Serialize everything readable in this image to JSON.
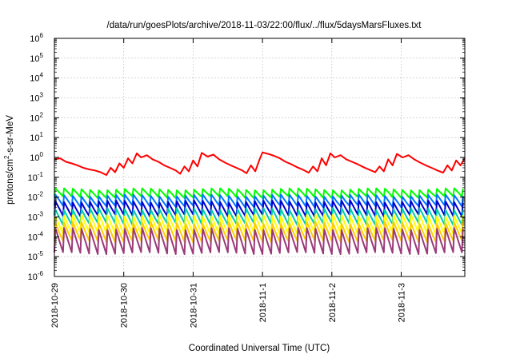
{
  "chart_data": {
    "type": "line",
    "title": "/data/run/goesPlots/archive/2018-11-03/22:00/flux/../flux/5daysMarsFluxes.txt",
    "xlabel": "Coordinated Universal Time (UTC)",
    "ylabel": "protons/cm²-s-sr-MeV",
    "y_scale": "log",
    "ylim": [
      1e-06,
      1000000.0
    ],
    "y_ticks": [
      {
        "base": "10",
        "exp": "-6",
        "value": 1e-06
      },
      {
        "base": "10",
        "exp": "-5",
        "value": 1e-05
      },
      {
        "base": "10",
        "exp": "-4",
        "value": 0.0001
      },
      {
        "base": "10",
        "exp": "-3",
        "value": 0.001
      },
      {
        "base": "10",
        "exp": "-2",
        "value": 0.01
      },
      {
        "base": "10",
        "exp": "-1",
        "value": 0.1
      },
      {
        "base": "10",
        "exp": "0",
        "value": 1
      },
      {
        "base": "10",
        "exp": "1",
        "value": 10
      },
      {
        "base": "10",
        "exp": "2",
        "value": 100
      },
      {
        "base": "10",
        "exp": "3",
        "value": 1000
      },
      {
        "base": "10",
        "exp": "4",
        "value": 10000
      },
      {
        "base": "10",
        "exp": "5",
        "value": 100000
      },
      {
        "base": "10",
        "exp": "6",
        "value": 1000000
      }
    ],
    "xlim": [
      "2018-10-29T00:00",
      "2018-11-03T22:00"
    ],
    "x_ticks": [
      "2018-10-29",
      "2018-10-30",
      "2018-10-31",
      "2018-11-1",
      "2018-11-2",
      "2018-11-3"
    ],
    "grid": true,
    "series": [
      {
        "color": "#ff0000",
        "values": [
          [
            "2018-10-29T00:00",
            0.8
          ],
          [
            "2018-10-29T02:00",
            0.9
          ],
          [
            "2018-10-29T04:00",
            0.6
          ],
          [
            "2018-10-29T06:00",
            0.5
          ],
          [
            "2018-10-29T08:00",
            0.4
          ],
          [
            "2018-10-29T10:00",
            0.3
          ],
          [
            "2018-10-29T12:00",
            0.25
          ],
          [
            "2018-10-29T14:00",
            0.22
          ],
          [
            "2018-10-29T16:00",
            0.18
          ],
          [
            "2018-10-29T18:00",
            0.13
          ],
          [
            "2018-10-29T19:30",
            0.3
          ],
          [
            "2018-10-29T21:00",
            0.18
          ],
          [
            "2018-10-29T22:30",
            0.5
          ],
          [
            "2018-10-30T00:00",
            0.3
          ],
          [
            "2018-10-30T01:30",
            0.9
          ],
          [
            "2018-10-30T03:00",
            0.5
          ],
          [
            "2018-10-30T04:30",
            1.6
          ],
          [
            "2018-10-30T06:00",
            1.0
          ],
          [
            "2018-10-30T08:00",
            1.3
          ],
          [
            "2018-10-30T10:00",
            0.8
          ],
          [
            "2018-10-30T12:00",
            0.6
          ],
          [
            "2018-10-30T14:00",
            0.4
          ],
          [
            "2018-10-30T16:00",
            0.3
          ],
          [
            "2018-10-30T18:00",
            0.22
          ],
          [
            "2018-10-30T19:30",
            0.15
          ],
          [
            "2018-10-30T21:00",
            0.35
          ],
          [
            "2018-10-30T22:30",
            0.2
          ],
          [
            "2018-10-31T00:00",
            0.7
          ],
          [
            "2018-10-31T01:30",
            0.35
          ],
          [
            "2018-10-31T03:00",
            1.7
          ],
          [
            "2018-10-31T05:00",
            1.1
          ],
          [
            "2018-10-31T07:00",
            1.4
          ],
          [
            "2018-10-31T09:00",
            0.8
          ],
          [
            "2018-10-31T11:00",
            0.55
          ],
          [
            "2018-10-31T13:00",
            0.4
          ],
          [
            "2018-10-31T15:00",
            0.3
          ],
          [
            "2018-10-31T17:00",
            0.22
          ],
          [
            "2018-10-31T18:30",
            0.16
          ],
          [
            "2018-10-31T20:00",
            0.4
          ],
          [
            "2018-10-31T21:30",
            0.2
          ],
          [
            "2018-10-31T23:00",
            0.8
          ],
          [
            "2018-11-01T00:00",
            1.8
          ],
          [
            "2018-11-01T02:00",
            1.5
          ],
          [
            "2018-11-01T04:00",
            1.2
          ],
          [
            "2018-11-01T06:00",
            0.9
          ],
          [
            "2018-11-01T08:00",
            0.6
          ],
          [
            "2018-11-01T10:00",
            0.45
          ],
          [
            "2018-11-01T12:00",
            0.32
          ],
          [
            "2018-11-01T14:00",
            0.24
          ],
          [
            "2018-11-01T16:00",
            0.17
          ],
          [
            "2018-11-01T17:30",
            0.35
          ],
          [
            "2018-11-01T19:00",
            0.2
          ],
          [
            "2018-11-01T20:30",
            0.9
          ],
          [
            "2018-11-01T22:00",
            0.4
          ],
          [
            "2018-11-01T23:30",
            1.6
          ],
          [
            "2018-11-02T01:00",
            1.0
          ],
          [
            "2018-11-02T03:00",
            1.3
          ],
          [
            "2018-11-02T05:00",
            0.8
          ],
          [
            "2018-11-02T07:00",
            0.6
          ],
          [
            "2018-11-02T09:00",
            0.45
          ],
          [
            "2018-11-02T11:00",
            0.32
          ],
          [
            "2018-11-02T13:00",
            0.24
          ],
          [
            "2018-11-02T15:00",
            0.18
          ],
          [
            "2018-11-02T16:30",
            0.35
          ],
          [
            "2018-11-02T18:00",
            0.2
          ],
          [
            "2018-11-02T19:30",
            0.8
          ],
          [
            "2018-11-02T21:00",
            0.4
          ],
          [
            "2018-11-02T22:30",
            1.5
          ],
          [
            "2018-11-03T00:30",
            1.0
          ],
          [
            "2018-11-03T02:30",
            1.3
          ],
          [
            "2018-11-03T04:30",
            0.8
          ],
          [
            "2018-11-03T06:30",
            0.55
          ],
          [
            "2018-11-03T08:30",
            0.4
          ],
          [
            "2018-11-03T10:30",
            0.3
          ],
          [
            "2018-11-03T12:30",
            0.22
          ],
          [
            "2018-11-03T14:30",
            0.17
          ],
          [
            "2018-11-03T16:00",
            0.4
          ],
          [
            "2018-11-03T17:30",
            0.22
          ],
          [
            "2018-11-03T19:00",
            0.7
          ],
          [
            "2018-11-03T20:30",
            0.4
          ],
          [
            "2018-11-03T22:00",
            0.9
          ]
        ]
      },
      {
        "color": "#00ff00",
        "sawtooth": {
          "peak": 0.025,
          "trough": 0.01,
          "period_hours": 3
        }
      },
      {
        "color": "#0077ff",
        "sawtooth": {
          "peak": 0.012,
          "trough": 0.0035,
          "period_hours": 3
        }
      },
      {
        "color": "#0000cc",
        "sawtooth": {
          "peak": 0.006,
          "trough": 0.0012,
          "period_hours": 3
        }
      },
      {
        "color": "#00ccaa",
        "sawtooth": {
          "peak": 0.0025,
          "trough": 0.00045,
          "period_hours": 3
        }
      },
      {
        "color": "#ffff00",
        "sawtooth": {
          "peak": 0.0012,
          "trough": 0.00015,
          "period_hours": 3
        }
      },
      {
        "color": "#ffcc00",
        "sawtooth": {
          "peak": 0.0005,
          "trough": 6e-05,
          "period_hours": 3
        }
      },
      {
        "color": "#9b3a7a",
        "sawtooth": {
          "peak": 0.00025,
          "trough": 1.5e-05,
          "period_hours": 3
        }
      }
    ]
  }
}
